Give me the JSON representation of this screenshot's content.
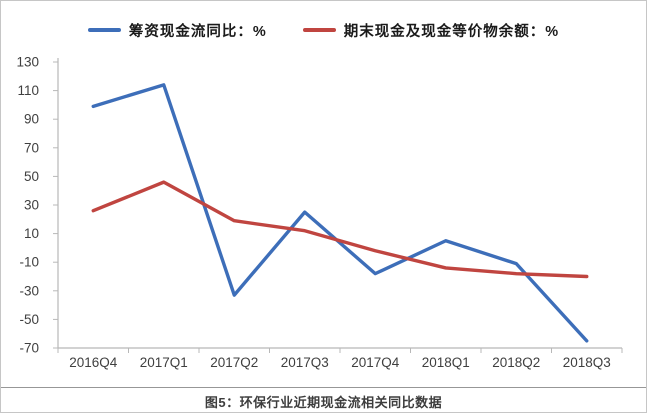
{
  "legend": {
    "series1_label": "筹资现金流同比：%",
    "series2_label": "期末现金及现金等价物余额：%"
  },
  "caption": "图5：环保行业近期现金流相关同比数据",
  "colors": {
    "series1": "#3d6eb9",
    "series2": "#c04540",
    "axis": "#b8b8b8",
    "tick_text": "#3f3f3f",
    "caption_rule": "#979797"
  },
  "chart_data": {
    "type": "line",
    "categories": [
      "2016Q4",
      "2017Q1",
      "2017Q2",
      "2017Q3",
      "2017Q4",
      "2018Q1",
      "2018Q2",
      "2018Q3"
    ],
    "series": [
      {
        "name": "筹资现金流同比：%",
        "color": "#3d6eb9",
        "values": [
          99,
          114,
          -33,
          25,
          -18,
          5,
          -11,
          -65
        ]
      },
      {
        "name": "期末现金及现金等价物余额：%",
        "color": "#c04540",
        "values": [
          26,
          46,
          19,
          12,
          -2,
          -14,
          -18,
          -20
        ]
      }
    ],
    "title": "图5：环保行业近期现金流相关同比数据",
    "xlabel": "",
    "ylabel": "",
    "ylim": [
      -70,
      130
    ],
    "yticks": [
      130,
      110,
      90,
      70,
      50,
      30,
      10,
      -10,
      -30,
      -50,
      -70
    ],
    "grid": false,
    "legend_position": "top"
  }
}
